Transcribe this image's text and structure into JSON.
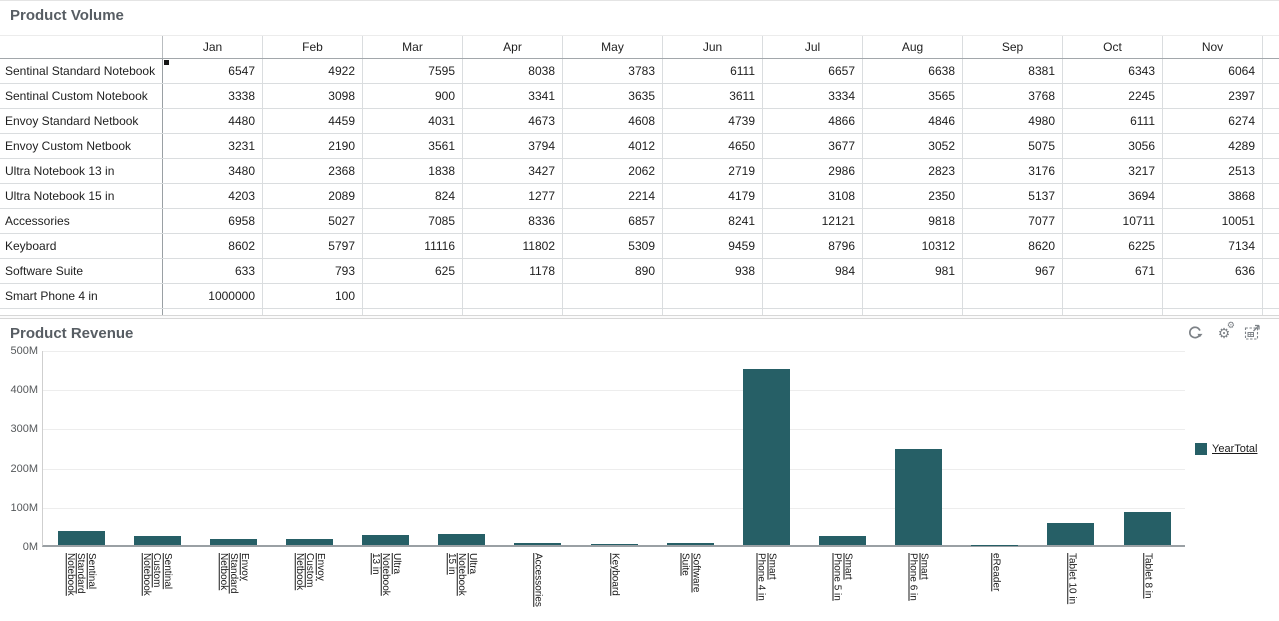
{
  "volume_panel": {
    "title": "Product Volume",
    "columns": [
      "Jan",
      "Feb",
      "Mar",
      "Apr",
      "May",
      "Jun",
      "Jul",
      "Aug",
      "Sep",
      "Oct",
      "Nov"
    ],
    "rows": [
      {
        "label": "Sentinal Standard Notebook",
        "values": [
          6547,
          4922,
          7595,
          8038,
          3783,
          6111,
          6657,
          6638,
          8381,
          6343,
          6064
        ]
      },
      {
        "label": "Sentinal Custom Notebook",
        "values": [
          3338,
          3098,
          900,
          3341,
          3635,
          3611,
          3334,
          3565,
          3768,
          2245,
          2397
        ]
      },
      {
        "label": "Envoy Standard Netbook",
        "values": [
          4480,
          4459,
          4031,
          4673,
          4608,
          4739,
          4866,
          4846,
          4980,
          6111,
          6274
        ]
      },
      {
        "label": "Envoy Custom Netbook",
        "values": [
          3231,
          2190,
          3561,
          3794,
          4012,
          4650,
          3677,
          3052,
          5075,
          3056,
          4289
        ]
      },
      {
        "label": "Ultra Notebook 13 in",
        "values": [
          3480,
          2368,
          1838,
          3427,
          2062,
          2719,
          2986,
          2823,
          3176,
          3217,
          2513
        ]
      },
      {
        "label": "Ultra Notebook 15 in",
        "values": [
          4203,
          2089,
          824,
          1277,
          2214,
          4179,
          3108,
          2350,
          5137,
          3694,
          3868
        ]
      },
      {
        "label": "Accessories",
        "values": [
          6958,
          5027,
          7085,
          8336,
          6857,
          8241,
          12121,
          9818,
          7077,
          10711,
          10051
        ]
      },
      {
        "label": "Keyboard",
        "values": [
          8602,
          5797,
          11116,
          11802,
          5309,
          9459,
          8796,
          10312,
          8620,
          6225,
          7134
        ]
      },
      {
        "label": "Software Suite",
        "values": [
          633,
          793,
          625,
          1178,
          890,
          938,
          984,
          981,
          967,
          671,
          636
        ]
      },
      {
        "label": "Smart Phone 4 in",
        "values": [
          1000000,
          100,
          null,
          null,
          null,
          null,
          null,
          null,
          null,
          null,
          null
        ]
      }
    ]
  },
  "revenue_panel": {
    "title": "Product Revenue",
    "toolbar_icons": [
      "refresh-icon",
      "settings-gears-icon",
      "maximize-icon"
    ],
    "legend": {
      "label": "YearTotal",
      "color": "#265f66"
    }
  },
  "chart_data": {
    "type": "bar",
    "title": "Product Revenue",
    "categories": [
      "Sentinal Standard Notebook",
      "Sentinal Custom Notebook",
      "Envoy Standard Netbook",
      "Envoy Custom Netbook",
      "Ultra Notebook 13 in",
      "Ultra Notebook 15 in",
      "Accessories",
      "Keyboard",
      "Software Suite",
      "Smart Phone 4 in",
      "Smart Phone 5 in",
      "Smart Phone 6 in",
      "eReader",
      "Tablet 10 in",
      "Tablet 8 in"
    ],
    "series": [
      {
        "name": "YearTotal",
        "values": [
          36,
          23,
          15,
          15,
          26,
          28,
          5,
          3,
          4,
          450,
          23,
          245,
          1,
          56,
          84
        ]
      }
    ],
    "value_unit": "M",
    "ylim": [
      0,
      500
    ],
    "ytick_step": 100,
    "ytick_labels": [
      "0M",
      "100M",
      "200M",
      "300M",
      "400M",
      "500M"
    ],
    "bar_color": "#265f66",
    "grid": true,
    "legend_position": "right"
  }
}
